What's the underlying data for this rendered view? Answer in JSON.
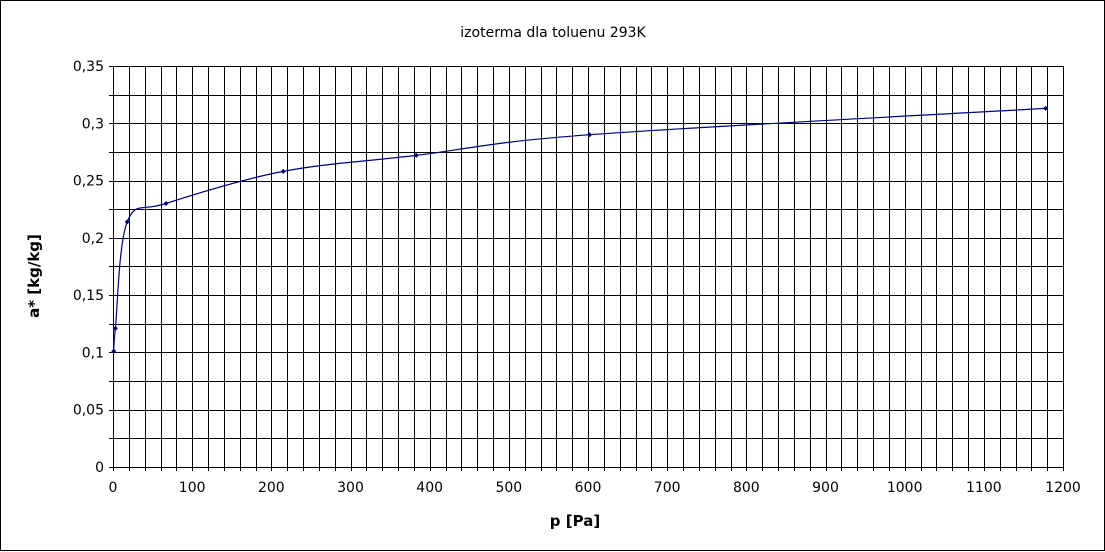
{
  "chart_data": {
    "type": "line",
    "title": "izoterma dla toluenu 293K",
    "xlabel": "p [Pa]",
    "ylabel": "a* [kg/kg]",
    "xlim": [
      0,
      1200
    ],
    "ylim": [
      0,
      0.35
    ],
    "x_major_step": 100,
    "x_minor_step": 20,
    "y_major_step": 0.05,
    "y_minor_step": 0.025,
    "x_tick_labels": [
      "0",
      "100",
      "200",
      "300",
      "400",
      "500",
      "600",
      "700",
      "800",
      "900",
      "1000",
      "1100",
      "1200"
    ],
    "y_tick_labels": [
      "0",
      "0,05",
      "0,1",
      "0,15",
      "0,2",
      "0,25",
      "0,3",
      "0,35"
    ],
    "grid": true,
    "legend": "none",
    "series": [
      {
        "color": "#000080",
        "marker": "diamond",
        "x": [
          1,
          3,
          18,
          67,
          215,
          383,
          602,
          1178
        ],
        "y": [
          0.101,
          0.121,
          0.214,
          0.23,
          0.258,
          0.272,
          0.29,
          0.313
        ]
      }
    ]
  }
}
